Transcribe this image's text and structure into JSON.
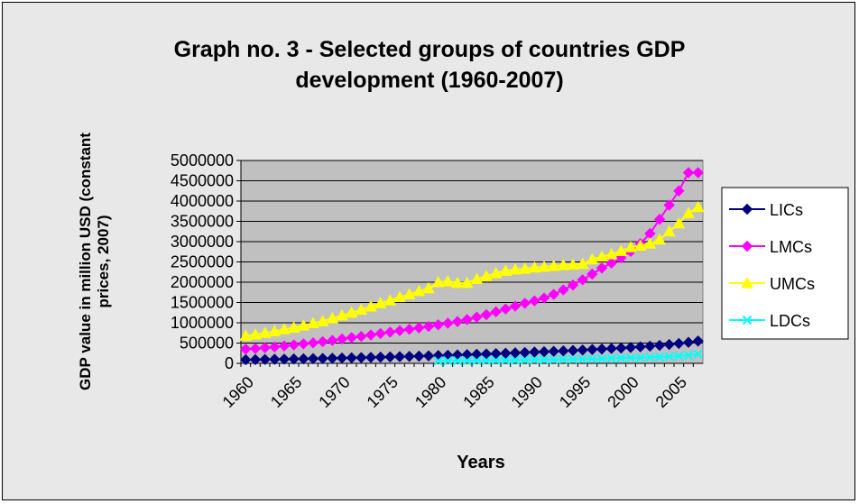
{
  "chart_data": {
    "type": "line",
    "title": "Graph no. 3 - Selected groups of countries GDP development (1960-2007)",
    "title_lines": [
      "Graph no. 3 - Selected groups of countries GDP",
      "development (1960-2007)"
    ],
    "xlabel": "Years",
    "ylabel": "GDP value in million USD (constant prices, 2007)",
    "ylabel_lines": [
      "GDP value in million USD (constant",
      "prices, 2007)"
    ],
    "x": [
      1960,
      1961,
      1962,
      1963,
      1964,
      1965,
      1966,
      1967,
      1968,
      1969,
      1970,
      1971,
      1972,
      1973,
      1974,
      1975,
      1976,
      1977,
      1978,
      1979,
      1980,
      1981,
      1982,
      1983,
      1984,
      1985,
      1986,
      1987,
      1988,
      1989,
      1990,
      1991,
      1992,
      1993,
      1994,
      1995,
      1996,
      1997,
      1998,
      1999,
      2000,
      2001,
      2002,
      2003,
      2004,
      2005,
      2006,
      2007
    ],
    "x_tick_labels": [
      "1960",
      "1965",
      "1970",
      "1975",
      "1980",
      "1985",
      "1990",
      "1995",
      "2000",
      "2005"
    ],
    "ylim": [
      0,
      5000000
    ],
    "y_tick_labels": [
      "0",
      "500000",
      "1000000",
      "1500000",
      "2000000",
      "2500000",
      "3000000",
      "3500000",
      "4000000",
      "4500000",
      "5000000"
    ],
    "grid": true,
    "legend_position": "right",
    "series": [
      {
        "name": "LICs",
        "color": "#000080",
        "marker": "diamond",
        "values": [
          90000,
          93000,
          96000,
          100000,
          104000,
          108000,
          112000,
          116000,
          121000,
          126000,
          131000,
          136000,
          141000,
          147000,
          153000,
          159000,
          165000,
          171000,
          178000,
          185000,
          192000,
          199000,
          206000,
          214000,
          222000,
          231000,
          240000,
          249000,
          258000,
          268000,
          278000,
          287000,
          296000,
          306000,
          317000,
          329000,
          341000,
          353000,
          365000,
          378000,
          392000,
          407000,
          424000,
          443000,
          465000,
          490000,
          518000,
          550000
        ]
      },
      {
        "name": "LMCs",
        "color": "#ff00ff",
        "marker": "diamond",
        "values": [
          350000,
          365000,
          385000,
          405000,
          430000,
          455000,
          480000,
          505000,
          535000,
          565000,
          600000,
          635000,
          665000,
          700000,
          735000,
          770000,
          805000,
          840000,
          875000,
          910000,
          950000,
          990000,
          1030000,
          1080000,
          1140000,
          1200000,
          1270000,
          1340000,
          1410000,
          1480000,
          1540000,
          1610000,
          1700000,
          1810000,
          1930000,
          2060000,
          2200000,
          2350000,
          2470000,
          2600000,
          2760000,
          2950000,
          3200000,
          3550000,
          3900000,
          4250000,
          4700000,
          4700000
        ]
      },
      {
        "name": "UMCs",
        "color": "#ffff00",
        "marker": "triangle",
        "values": [
          680000,
          710000,
          750000,
          790000,
          840000,
          880000,
          930000,
          990000,
          1040000,
          1110000,
          1180000,
          1250000,
          1320000,
          1400000,
          1480000,
          1550000,
          1630000,
          1700000,
          1780000,
          1850000,
          2000000,
          2020000,
          1980000,
          1980000,
          2080000,
          2150000,
          2220000,
          2280000,
          2310000,
          2330000,
          2360000,
          2380000,
          2400000,
          2420000,
          2430000,
          2450000,
          2560000,
          2630000,
          2690000,
          2770000,
          2860000,
          2900000,
          2950000,
          3050000,
          3250000,
          3450000,
          3700000,
          3850000
        ]
      },
      {
        "name": "LDCs",
        "color": "#00ffff",
        "marker": "x",
        "values": [
          null,
          null,
          null,
          null,
          null,
          null,
          null,
          null,
          null,
          null,
          null,
          null,
          null,
          null,
          null,
          null,
          null,
          null,
          null,
          null,
          60000,
          62000,
          64000,
          66000,
          68000,
          71000,
          74000,
          77000,
          80000,
          84000,
          88000,
          91000,
          94000,
          98000,
          102000,
          107000,
          112000,
          117000,
          122000,
          128000,
          134000,
          141000,
          149000,
          158000,
          168000,
          180000,
          200000,
          230000
        ]
      }
    ]
  }
}
